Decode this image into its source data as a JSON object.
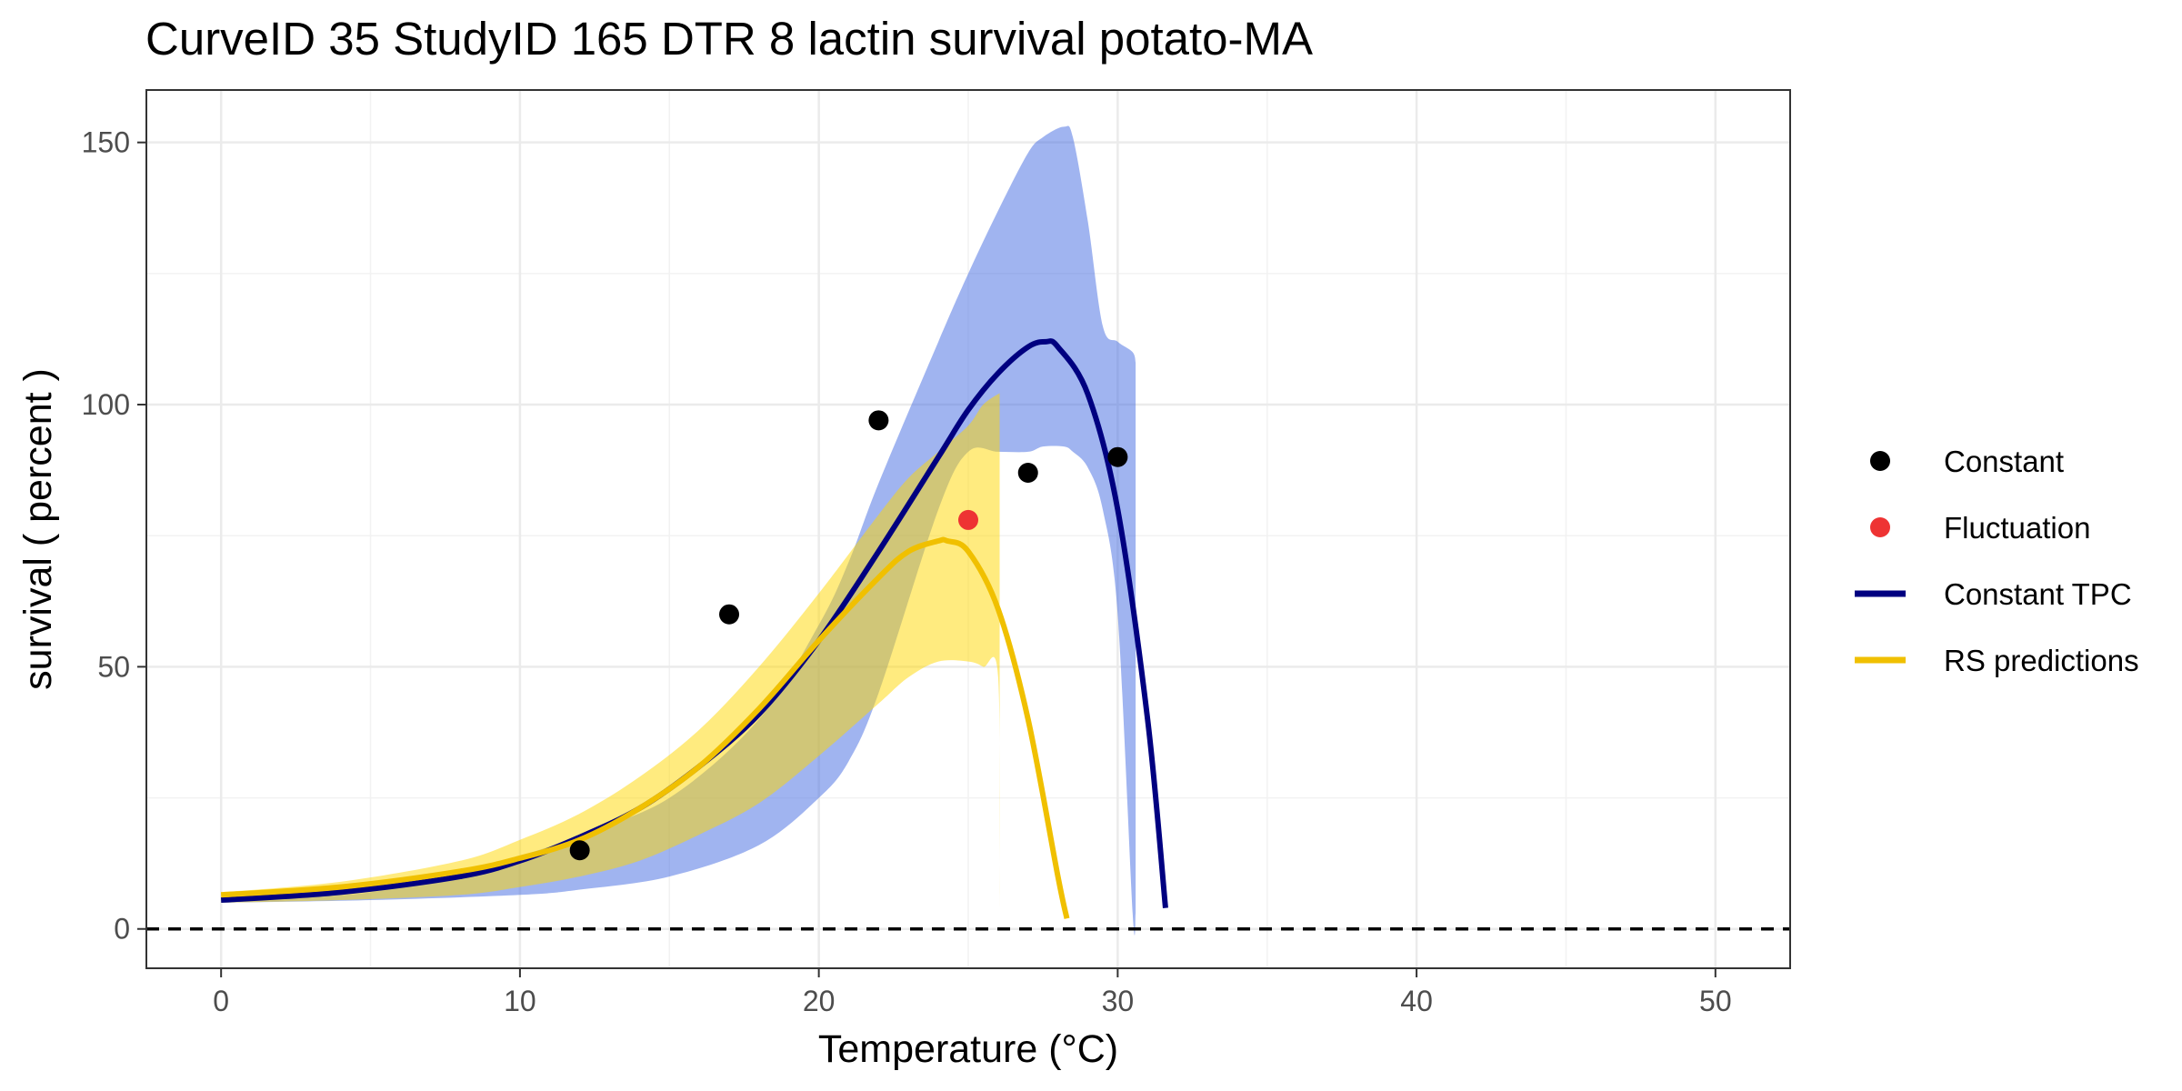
{
  "chart_data": {
    "type": "line",
    "title": "CurveID 35 StudyID 165 DTR 8 lactin survival potato-MA",
    "xlabel": "Temperature (°C)",
    "ylabel": "survival ( percent )",
    "xlim": [
      -2.5,
      52.5
    ],
    "ylim": [
      -7.5,
      160
    ],
    "x_ticks": [
      0,
      10,
      20,
      30,
      40,
      50
    ],
    "x_tick_labels": [
      "0",
      "10",
      "20",
      "30",
      "40",
      "50"
    ],
    "y_ticks": [
      0,
      50,
      100,
      150
    ],
    "y_tick_labels": [
      "0",
      "50",
      "100",
      "150"
    ],
    "grid": true,
    "legend_position": "right",
    "colors": {
      "constant_points": "#000000",
      "fluctuation_points": "#ee3333",
      "constant_tpc": "#000080",
      "constant_tpc_band": "#4169e1",
      "rs_predictions": "#f0c000",
      "rs_band": "#ffd700",
      "zero_line": "#000000"
    },
    "legend": [
      {
        "label": "Constant",
        "kind": "point",
        "color": "#000000"
      },
      {
        "label": "Fluctuation",
        "kind": "point",
        "color": "#ee3333"
      },
      {
        "label": "Constant TPC",
        "kind": "line",
        "color": "#000080"
      },
      {
        "label": "RS predictions",
        "kind": "line",
        "color": "#f0c000"
      }
    ],
    "series": [
      {
        "name": "Constant",
        "kind": "points",
        "x": [
          12,
          17,
          22,
          27,
          30
        ],
        "y": [
          15,
          60,
          97,
          87,
          90
        ]
      },
      {
        "name": "Fluctuation",
        "kind": "points",
        "x": [
          25
        ],
        "y": [
          78
        ]
      },
      {
        "name": "Constant TPC",
        "kind": "line",
        "x": [
          0,
          4,
          8,
          10,
          12,
          14,
          16,
          18,
          20,
          22,
          24,
          25,
          26,
          27,
          27.6,
          28,
          29,
          30,
          31,
          31.6
        ],
        "y": [
          5.5,
          7,
          10,
          13,
          17.5,
          23,
          31,
          41,
          55,
          72,
          90,
          99,
          106,
          111,
          112,
          111,
          102,
          80,
          40,
          4
        ]
      },
      {
        "name": "Constant TPC band",
        "kind": "band",
        "x": [
          0,
          5,
          10,
          12,
          15,
          18,
          20,
          21,
          22,
          24,
          25,
          26,
          27,
          27.5,
          28.2,
          28.5,
          29,
          29.5,
          30,
          30.5,
          30.6
        ],
        "ymin": [
          5,
          5.5,
          6.5,
          7.5,
          10,
          16,
          25,
          32,
          45,
          80,
          91,
          91,
          91,
          92,
          92,
          91,
          88,
          80,
          60,
          3,
          3
        ],
        "ymax": [
          6,
          7,
          14,
          18,
          25,
          40,
          58,
          70,
          85,
          112,
          125,
          137,
          148,
          151,
          153,
          151,
          135,
          115,
          112,
          110,
          108
        ]
      },
      {
        "name": "RS predictions",
        "kind": "line",
        "x": [
          0,
          4,
          8,
          10,
          12,
          14,
          16,
          18,
          20,
          22,
          23,
          24,
          24.3,
          25,
          26,
          27,
          28,
          28.3
        ],
        "y": [
          6.5,
          8,
          11,
          13.5,
          17,
          23,
          31,
          42,
          55,
          67,
          72,
          74,
          74,
          72,
          61,
          40,
          10,
          2
        ]
      },
      {
        "name": "RS predictions band",
        "kind": "band",
        "x": [
          0,
          4,
          8,
          10,
          12,
          14,
          16,
          18,
          20,
          22,
          23,
          24,
          25,
          25.5,
          26,
          26.05
        ],
        "ymin": [
          5,
          5.5,
          6.5,
          8,
          10,
          13,
          18,
          24,
          33,
          43,
          48,
          51,
          51,
          50,
          48,
          4
        ],
        "ymax": [
          7,
          9,
          13,
          17,
          22,
          29,
          38,
          50,
          64,
          79,
          86,
          91,
          96,
          100,
          102,
          102
        ]
      },
      {
        "name": "Zero line",
        "kind": "hline",
        "y": 0
      }
    ]
  }
}
